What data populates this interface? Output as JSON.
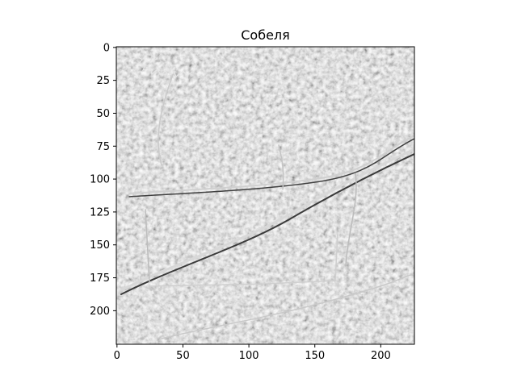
{
  "chart_data": {
    "type": "heatmap",
    "title": "Собеля",
    "content": "grayscale Sobel edge-filter image of a terrain / satellite scene",
    "colormap": "gray",
    "image_size": [
      226,
      226
    ],
    "xlim": [
      -0.5,
      225.5
    ],
    "ylim": [
      225.5,
      -0.5
    ],
    "x_ticks": [
      0,
      50,
      100,
      150,
      200
    ],
    "y_ticks": [
      0,
      25,
      50,
      75,
      100,
      125,
      150,
      175,
      200
    ],
    "x_tick_labels": [
      "0",
      "50",
      "100",
      "150",
      "200"
    ],
    "y_tick_labels": [
      "0",
      "25",
      "50",
      "75",
      "100",
      "125",
      "150",
      "175",
      "200"
    ],
    "grid": false,
    "legend": false
  }
}
